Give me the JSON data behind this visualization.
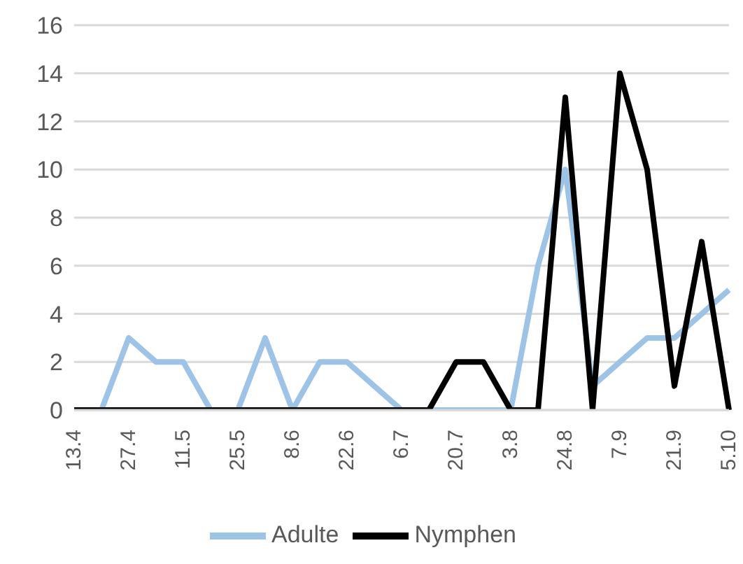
{
  "chart_data": {
    "type": "line",
    "categories": [
      "13.4",
      null,
      "27.4",
      null,
      "11.5",
      null,
      "25.5",
      null,
      "8.6",
      null,
      "22.6",
      null,
      "6.7",
      null,
      "20.7",
      null,
      "3.8",
      null,
      "24.8",
      null,
      "7.9",
      null,
      "21.9",
      null,
      "5.10"
    ],
    "series": [
      {
        "name": "Adulte",
        "color": "#9dc3e6",
        "values": [
          0,
          0,
          3,
          2,
          2,
          0,
          0,
          3,
          0,
          2,
          2,
          1,
          0,
          0,
          0,
          0,
          0,
          6,
          10,
          1,
          2,
          3,
          3,
          4,
          5
        ]
      },
      {
        "name": "Nymphen",
        "color": "#000000",
        "values": [
          0,
          0,
          0,
          0,
          0,
          0,
          0,
          0,
          0,
          0,
          0,
          0,
          0,
          0,
          2,
          2,
          0,
          0,
          13,
          0,
          14,
          10,
          1,
          7,
          0
        ]
      }
    ],
    "ylim": [
      0,
      16
    ],
    "yticks": [
      0,
      2,
      4,
      6,
      8,
      10,
      12,
      14,
      16
    ],
    "grid": "y",
    "legend": "bottom",
    "marker": "none",
    "line_style": "solid"
  }
}
